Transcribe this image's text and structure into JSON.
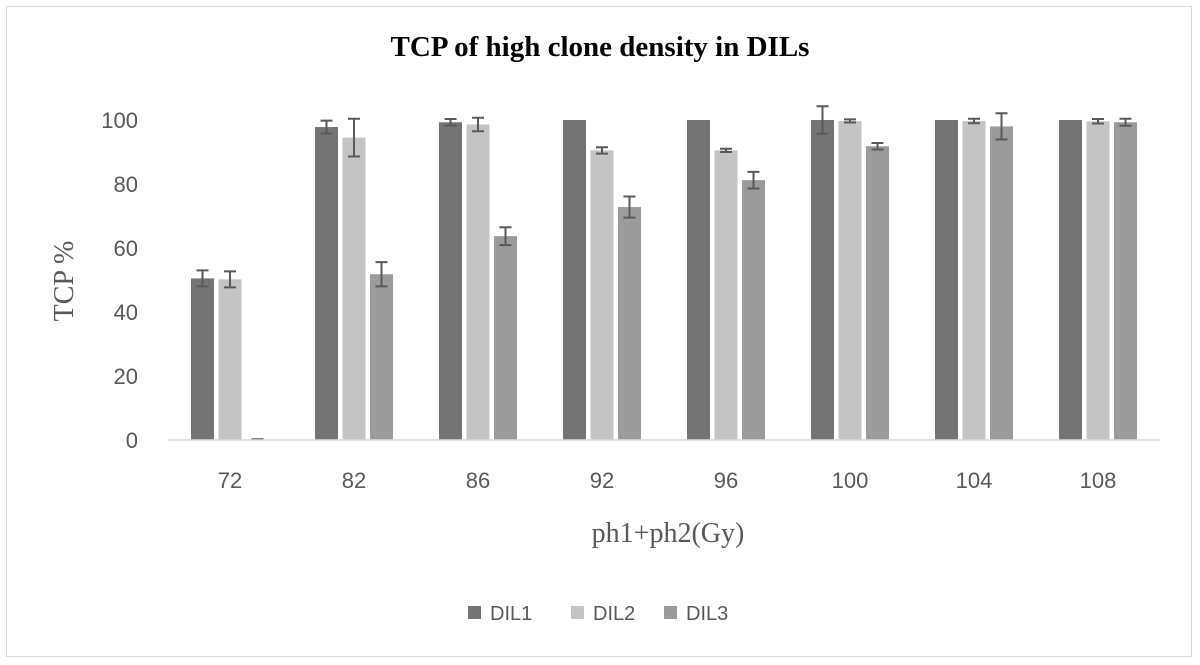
{
  "chart_data": {
    "type": "bar",
    "title": "TCP of high clone density in DILs",
    "xlabel": "ph1+ph2(Gy)",
    "ylabel": "TCP %",
    "ylim": [
      0,
      100
    ],
    "yticks": [
      0,
      20,
      40,
      60,
      80,
      100
    ],
    "grid": false,
    "legend_position": "bottom",
    "categories": [
      "72",
      "82",
      "86",
      "92",
      "96",
      "100",
      "104",
      "108"
    ],
    "series": [
      {
        "name": "DIL1",
        "color": "#747474",
        "values": [
          50.5,
          97.8,
          99.3,
          100,
          100,
          100,
          100,
          100
        ],
        "errors": [
          2.5,
          2.0,
          1.0,
          0,
          0,
          4.3,
          0,
          0
        ]
      },
      {
        "name": "DIL2",
        "color": "#c4c4c4",
        "values": [
          50.2,
          94.5,
          98.6,
          90.5,
          90.5,
          99.7,
          99.7,
          99.6
        ],
        "errors": [
          2.5,
          5.9,
          2.1,
          1.0,
          0.5,
          0.5,
          0.7,
          0.7
        ]
      },
      {
        "name": "DIL3",
        "color": "#9b9b9b",
        "values": [
          0,
          51.8,
          63.7,
          72.8,
          81.2,
          91.8,
          98,
          99.3
        ],
        "errors": [
          0,
          3.8,
          2.8,
          3.3,
          2.6,
          1.0,
          4.1,
          1.1
        ]
      }
    ]
  }
}
